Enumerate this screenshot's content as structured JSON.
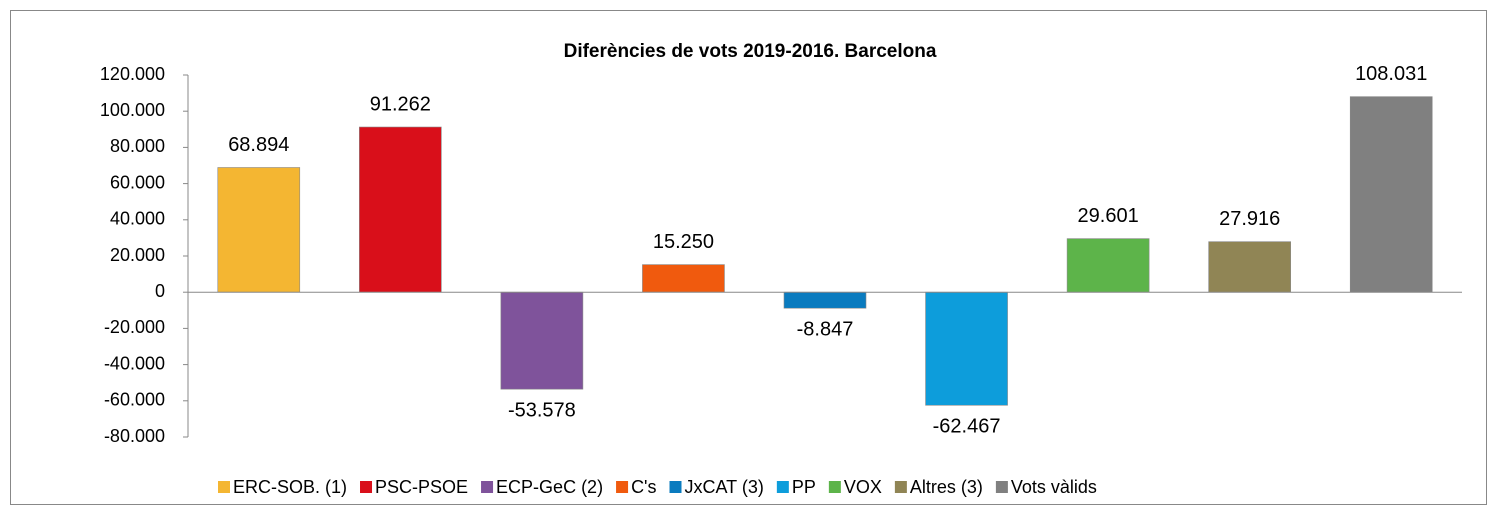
{
  "chart_data": {
    "type": "bar",
    "title": "Diferències de vots 2019-2016. Barcelona",
    "categories": [
      "ERC-SOB. (1)",
      "PSC-PSOE",
      "ECP-GeC (2)",
      "C's",
      "JxCAT (3)",
      "PP",
      "VOX",
      "Altres (3)",
      "Vots vàlids"
    ],
    "values": [
      68894,
      91262,
      -53578,
      15250,
      -8847,
      -62467,
      29601,
      27916,
      108031
    ],
    "value_labels": [
      "68.894",
      "91.262",
      "-53.578",
      "15.250",
      "-8.847",
      "-62.467",
      "29.601",
      "27.916",
      "108.031"
    ],
    "colors": [
      "#f4b632",
      "#d90f1a",
      "#7f539b",
      "#f05a0e",
      "#0a7bbf",
      "#0d9ddb",
      "#5db44a",
      "#908555",
      "#808080"
    ],
    "ylim": [
      -80000,
      120000
    ],
    "yticks": [
      {
        "value": -80000,
        "label": "-80.000"
      },
      {
        "value": -60000,
        "label": "-60.000"
      },
      {
        "value": -40000,
        "label": "-40.000"
      },
      {
        "value": -20000,
        "label": "-20.000"
      },
      0,
      {
        "value": 20000,
        "label": "20.000"
      },
      {
        "value": 40000,
        "label": "40.000"
      },
      {
        "value": 60000,
        "label": "60.000"
      },
      {
        "value": 80000,
        "label": "80.000"
      },
      {
        "value": 100000,
        "label": "100.000"
      },
      {
        "value": 120000,
        "label": "120.000"
      }
    ],
    "grid": false,
    "legend": "bottom"
  }
}
